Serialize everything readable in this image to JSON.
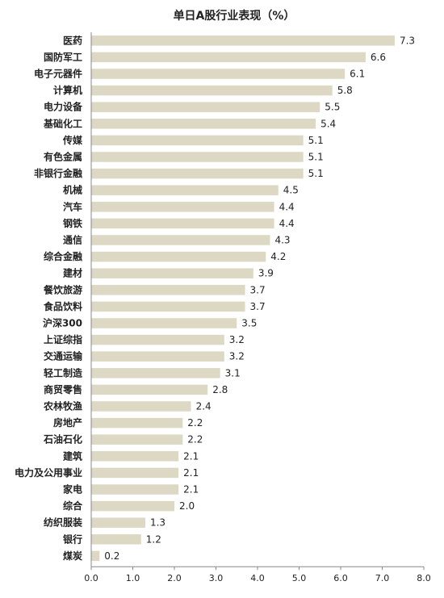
{
  "chart_data": {
    "type": "bar",
    "orientation": "horizontal",
    "title": "单日A股行业表现（%）",
    "xlabel": "",
    "ylabel": "",
    "xlim": [
      0,
      8
    ],
    "xticks": [
      "0.0",
      "1.0",
      "2.0",
      "3.0",
      "4.0",
      "5.0",
      "6.0",
      "7.0",
      "8.0"
    ],
    "grid": false,
    "bar_color": "#dcd8c4",
    "categories": [
      "医药",
      "国防军工",
      "电子元器件",
      "计算机",
      "电力设备",
      "基础化工",
      "传媒",
      "有色金属",
      "非银行金融",
      "机械",
      "汽车",
      "钢铁",
      "通信",
      "综合金融",
      "建材",
      "餐饮旅游",
      "食品饮料",
      "沪深300",
      "上证综指",
      "交通运输",
      "轻工制造",
      "商贸零售",
      "农林牧渔",
      "房地产",
      "石油石化",
      "建筑",
      "电力及公用事业",
      "家电",
      "综合",
      "纺织服装",
      "银行",
      "煤炭"
    ],
    "values": [
      7.3,
      6.6,
      6.1,
      5.8,
      5.5,
      5.4,
      5.1,
      5.1,
      5.1,
      4.5,
      4.4,
      4.4,
      4.3,
      4.2,
      3.9,
      3.7,
      3.7,
      3.5,
      3.2,
      3.2,
      3.1,
      2.8,
      2.4,
      2.2,
      2.2,
      2.1,
      2.1,
      2.1,
      2.0,
      1.3,
      1.2,
      0.2
    ],
    "labels": [
      "7.3",
      "6.6",
      "6.1",
      "5.8",
      "5.5",
      "5.4",
      "5.1",
      "5.1",
      "5.1",
      "4.5",
      "4.4",
      "4.4",
      "4.3",
      "4.2",
      "3.9",
      "3.7",
      "3.7",
      "3.5",
      "3.2",
      "3.2",
      "3.1",
      "2.8",
      "2.4",
      "2.2",
      "2.2",
      "2.1",
      "2.1",
      "2.1",
      "2.0",
      "1.3",
      "1.2",
      "0.2"
    ]
  }
}
